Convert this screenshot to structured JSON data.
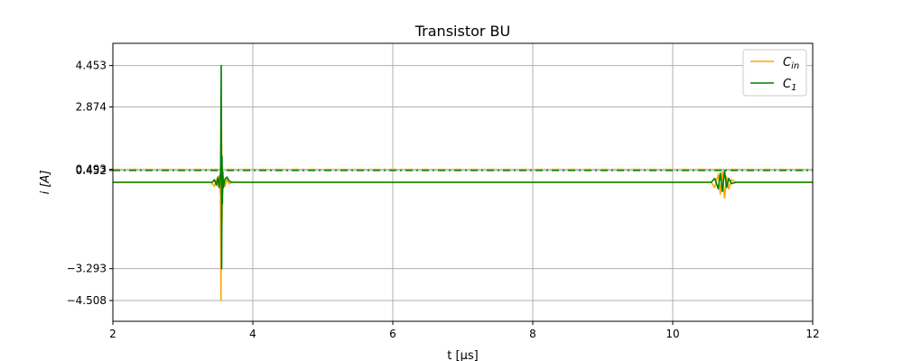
{
  "chart_data": {
    "type": "line",
    "title": "Transistor BU",
    "xlabel": "t [μs]",
    "ylabel": "i [A]",
    "xlim": [
      2,
      12
    ],
    "ylim": [
      -5.3,
      5.3
    ],
    "grid": true,
    "legend_position": "top-right",
    "x_ticks": [
      2,
      4,
      6,
      8,
      10,
      12
    ],
    "x_tick_labels": [
      "2",
      "4",
      "6",
      "8",
      "10",
      "12"
    ],
    "y_ticks": [
      -4.508,
      -3.293,
      0.452,
      0.493,
      2.874,
      4.453
    ],
    "y_tick_labels": [
      "−4.508",
      "−3.293",
      "0.452",
      "0.493",
      "2.874",
      "4.453"
    ],
    "reference_lines": [
      {
        "series": "C_in",
        "y": 0.493,
        "style": "dash-dot"
      },
      {
        "series": "C_1",
        "y": 0.452,
        "style": "dash-dot"
      }
    ],
    "series": [
      {
        "name": "C_in",
        "legend_main": "C",
        "legend_sub": "in",
        "color": "#ffa500",
        "x": [
          2,
          3.4,
          3.45,
          3.48,
          3.5,
          3.52,
          3.54,
          3.545,
          3.55,
          3.555,
          3.56,
          3.565,
          3.57,
          3.58,
          3.6,
          3.63,
          3.66,
          3.7,
          10.55,
          10.6,
          10.65,
          10.68,
          10.71,
          10.74,
          10.77,
          10.8,
          10.84,
          10.9,
          12
        ],
        "y": [
          0.0,
          0.0,
          -0.15,
          0.1,
          -0.15,
          0.25,
          -0.5,
          -4.508,
          2.874,
          1.2,
          -1.5,
          0.6,
          -0.4,
          0.2,
          -0.15,
          0.1,
          -0.05,
          0.0,
          0.0,
          -0.2,
          0.3,
          -0.45,
          0.4,
          -0.6,
          0.2,
          -0.25,
          0.1,
          0.0,
          0.0
        ]
      },
      {
        "name": "C_1",
        "legend_main": "C",
        "legend_sub": "1",
        "color": "#008000",
        "x": [
          2,
          3.42,
          3.45,
          3.48,
          3.5,
          3.52,
          3.54,
          3.548,
          3.555,
          3.56,
          3.565,
          3.57,
          3.58,
          3.6,
          3.63,
          3.66,
          3.7,
          10.55,
          10.6,
          10.65,
          10.68,
          10.71,
          10.74,
          10.77,
          10.8,
          10.84,
          10.9,
          12
        ],
        "y": [
          0.0,
          0.0,
          0.1,
          -0.1,
          0.2,
          -0.2,
          0.4,
          4.453,
          -3.293,
          1.0,
          -0.8,
          0.4,
          -0.2,
          0.1,
          0.2,
          0.05,
          0.0,
          0.0,
          0.15,
          -0.25,
          0.35,
          -0.35,
          0.45,
          -0.2,
          0.15,
          -0.05,
          0.0,
          0.0
        ]
      }
    ]
  }
}
